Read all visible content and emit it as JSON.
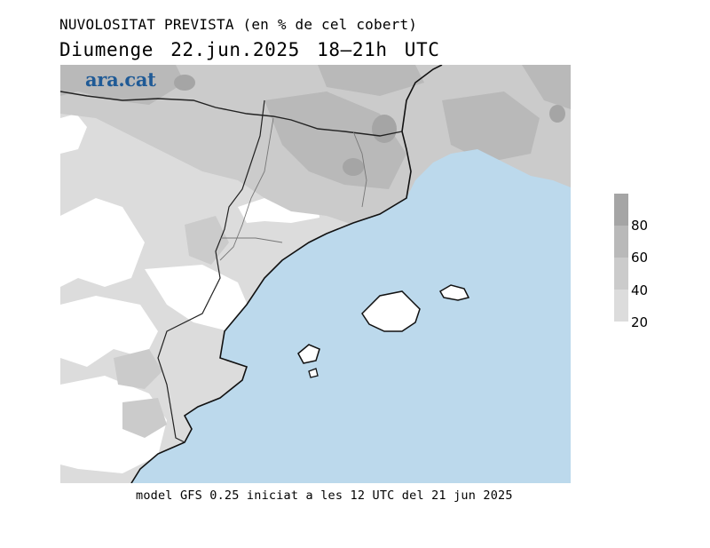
{
  "header": {
    "title": "NUVOLOSITAT PREVISTA (en % de cel cobert)",
    "subtitle": "Diumenge  22.jun.2025 18–21h UTC"
  },
  "logo": {
    "text": "ara.cat",
    "color": "#1f5a96"
  },
  "footer": {
    "text": "model GFS 0.25 iniciat a les 12 UTC del 21 jun 2025"
  },
  "legend": {
    "labels": [
      "80",
      "60",
      "40",
      "20"
    ],
    "levels": [
      {
        "range": "80–100",
        "color": "#a5a5a5"
      },
      {
        "range": "60–80",
        "color": "#b9b9b9"
      },
      {
        "range": "40–60",
        "color": "#cbcbcb"
      },
      {
        "range": "20–40",
        "color": "#dcdcdc"
      }
    ]
  },
  "map": {
    "sea_color": "#bcd9ec",
    "land_clear_color": "#ffffff",
    "coastline_color": "#111111",
    "border_color": "#222222"
  }
}
